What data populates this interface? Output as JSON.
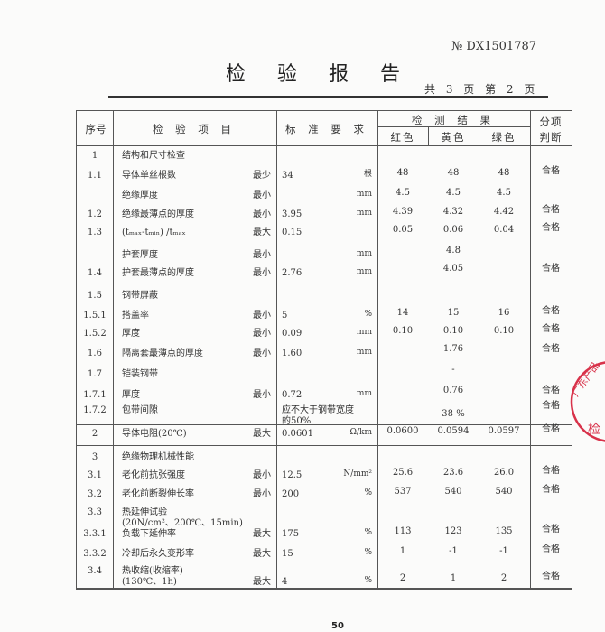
{
  "header": {
    "report_no": "№ DX1501787",
    "title": "检 验 报 告",
    "page_info": "共 3 页 第 2 页"
  },
  "table": {
    "columns": {
      "no": "序号",
      "item": "检 验 项 目",
      "standard": "标 准 要 求",
      "results": "检 测 结 果",
      "red": "红色",
      "yellow": "黄色",
      "green": "绿色",
      "verdict_1": "分项",
      "verdict_2": "判断"
    },
    "rows": [
      {
        "no": "1",
        "item": "结构和尺寸检查"
      },
      {
        "no": "1.1",
        "item": "导体单丝根数",
        "qual": "最少",
        "std": "34",
        "unit": "根",
        "red": "48",
        "yellow": "48",
        "green": "48",
        "verdict": "合格"
      },
      {
        "no": "",
        "item": "绝缘厚度",
        "qual": "最小",
        "unit": "mm",
        "red": "4.5",
        "yellow": "4.5",
        "green": "4.5"
      },
      {
        "no": "1.2",
        "item": "绝缘最薄点的厚度",
        "qual": "最小",
        "std": "3.95",
        "unit": "mm",
        "red": "4.39",
        "yellow": "4.32",
        "green": "4.42",
        "verdict": "合格"
      },
      {
        "no": "1.3",
        "item": "(tₘₐₓ-tₘᵢₙ) /tₘₐₓ",
        "qual": "最大",
        "std": "0.15",
        "red": "0.05",
        "yellow": "0.06",
        "green": "0.04",
        "verdict": "合格"
      },
      {
        "no": "",
        "item": "护套厚度",
        "qual": "最小",
        "unit": "mm",
        "merged": "4.8"
      },
      {
        "no": "1.4",
        "item": "护套最薄点的厚度",
        "qual": "最小",
        "std": "2.76",
        "unit": "mm",
        "merged": "4.05",
        "verdict": "合格"
      },
      {
        "no": "1.5",
        "item": "钢带屏蔽"
      },
      {
        "no": "1.5.1",
        "item": "搭盖率",
        "qual": "最小",
        "std": "5",
        "unit": "%",
        "red": "14",
        "yellow": "15",
        "green": "16",
        "verdict": "合格"
      },
      {
        "no": "1.5.2",
        "item": "厚度",
        "qual": "最小",
        "std": "0.09",
        "unit": "mm",
        "red": "0.10",
        "yellow": "0.10",
        "green": "0.10",
        "verdict": "合格"
      },
      {
        "no": "1.6",
        "item": "隔离套最薄点的厚度",
        "qual": "最小",
        "std": "1.60",
        "unit": "mm",
        "merged": "1.76",
        "verdict": "合格"
      },
      {
        "no": "1.7",
        "item": "铠装钢带",
        "merged": "-"
      },
      {
        "no": "1.7.1",
        "item": "厚度",
        "qual": "最小",
        "std": "0.72",
        "unit": "mm",
        "merged": "0.76",
        "verdict": "合格"
      },
      {
        "no": "1.7.2",
        "item": "包带间隙",
        "std": "应不大于钢带宽度",
        "std2": "的50%",
        "merged": "38 %",
        "verdict": "合格"
      },
      {
        "no": "2",
        "item": "导体电阻(20℃)",
        "qual": "最大",
        "std": "0.0601",
        "unit": "Ω/km",
        "red": "0.0600",
        "yellow": "0.0594",
        "green": "0.0597",
        "verdict": "合格"
      },
      {
        "no": "3",
        "item": "绝缘物理机械性能"
      },
      {
        "no": "3.1",
        "item": "老化前抗张强度",
        "qual": "最小",
        "std": "12.5",
        "unit": "N/mm²",
        "red": "25.6",
        "yellow": "23.6",
        "green": "26.0",
        "verdict": "合格"
      },
      {
        "no": "3.2",
        "item": "老化前断裂伸长率",
        "qual": "最小",
        "std": "200",
        "unit": "%",
        "red": "537",
        "yellow": "540",
        "green": "540",
        "verdict": "合格"
      },
      {
        "no": "3.3",
        "item": "热延伸试验",
        "item2": "(20N/cm²、200℃、15min)"
      },
      {
        "no": "3.3.1",
        "item": "负载下延伸率",
        "qual": "最大",
        "std": "175",
        "unit": "%",
        "red": "113",
        "yellow": "123",
        "green": "135",
        "verdict": "合格"
      },
      {
        "no": "3.3.2",
        "item": "冷却后永久变形率",
        "qual": "最大",
        "std": "15",
        "unit": "%",
        "red": "1",
        "yellow": "-1",
        "green": "-1",
        "verdict": "合格"
      },
      {
        "no": "3.4",
        "item": "热收缩(收缩率)",
        "item2": "(130℃、1h)",
        "qual": "最大",
        "std": "4",
        "unit": "%",
        "red": "2",
        "yellow": "1",
        "green": "2",
        "verdict": "合格"
      }
    ]
  },
  "stamp": {
    "text": "广东产品质量监督检验",
    "color": "#d8324a"
  },
  "footer": {
    "page_number": "50"
  }
}
